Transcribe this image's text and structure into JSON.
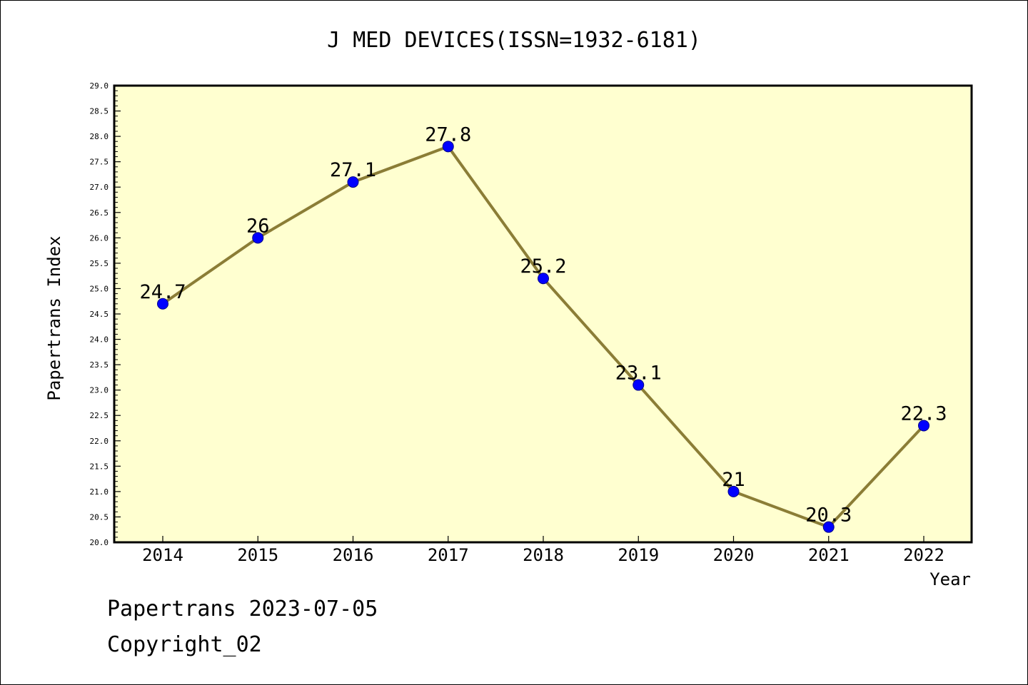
{
  "chart_data": {
    "type": "line",
    "title": "J MED DEVICES(ISSN=1932-6181)",
    "xlabel": "Year",
    "ylabel": "Papertrans Index",
    "categories": [
      "2014",
      "2015",
      "2016",
      "2017",
      "2018",
      "2019",
      "2020",
      "2021",
      "2022"
    ],
    "values": [
      24.7,
      26,
      27.1,
      27.8,
      25.2,
      23.1,
      21,
      20.3,
      22.3
    ],
    "data_labels": [
      "24.7",
      "26",
      "27.1",
      "27.8",
      "25.2",
      "23.1",
      "21",
      "20.3",
      "22.3"
    ],
    "ylim": [
      20.0,
      29.0
    ],
    "yticks": [
      "20.0",
      "20.5",
      "21.0",
      "21.5",
      "22.0",
      "22.5",
      "23.0",
      "23.5",
      "24.0",
      "24.5",
      "25.0",
      "25.5",
      "26.0",
      "26.5",
      "27.0",
      "27.5",
      "28.0",
      "28.5",
      "29.0"
    ],
    "grid": false,
    "colors": {
      "plot_background": "#FFFFD0",
      "line": "#8B7D36",
      "marker": "#0000FF",
      "marker_edge": "#00008B",
      "axis": "#000000"
    }
  },
  "footer": {
    "date_line": "Papertrans 2023-07-05",
    "copyright_line": "Copyright_02"
  }
}
